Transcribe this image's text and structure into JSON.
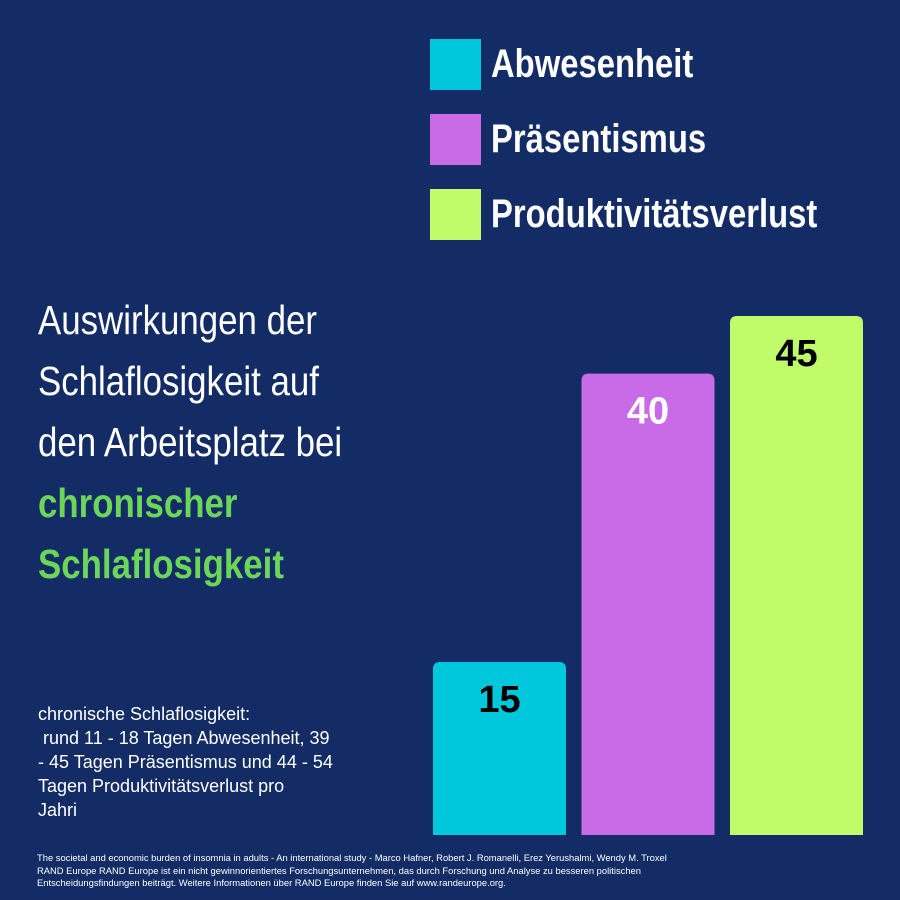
{
  "chart_data": {
    "type": "bar",
    "categories": [
      "Abwesenheit",
      "Präsentismus",
      "Produktivitätsverlust"
    ],
    "values": [
      15,
      40,
      45
    ],
    "colors": [
      "#00c8dc",
      "#c96be6",
      "#c0fb6a"
    ],
    "label_colors": [
      "#000000",
      "#ffffff",
      "#000000"
    ],
    "legend_position": "top-right",
    "grid": false,
    "title": "",
    "xlabel": "",
    "ylabel": "",
    "ylim": [
      0,
      50
    ]
  },
  "legend": {
    "items": [
      {
        "label": "Abwesenheit",
        "color": "#00c8dc"
      },
      {
        "label": "Präsentismus",
        "color": "#c96be6"
      },
      {
        "label": "Produktivitätsverlust",
        "color": "#c0fb6a"
      }
    ]
  },
  "headline": {
    "line1": "Auswirkungen der",
    "line2": "Schlaflosigkeit auf",
    "line3": "den Arbeitsplatz bei",
    "accent1": "chronischer",
    "accent2": "Schlaflosigkeit"
  },
  "note": {
    "line1": "chronische Schlaflosigkeit:",
    "line2": " rund 11 - 18 Tagen Abwesenheit, 39",
    "line3": "- 45 Tagen Präsentismus und 44 - 54",
    "line4": "Tagen Produktivitätsverlust pro",
    "line5": "Jahri"
  },
  "source": {
    "line1": "The societal and economic burden of insomnia in adults - An international study  - Marco Hafner, Robert J. Romanelli, Erez Yerushalmi, Wendy M. Troxel",
    "line2": "RAND Europe RAND Europe ist ein nicht gewinnorientiertes Forschungsunternehmen, das durch Forschung und Analyse zu besseren politischen",
    "line3": "Entscheidungsfindungen beiträgt. Weitere Informationen über RAND Europe finden Sie auf www.randeurope.org."
  },
  "colors": {
    "background": "#132c66",
    "accent_text": "#6bd65a"
  }
}
